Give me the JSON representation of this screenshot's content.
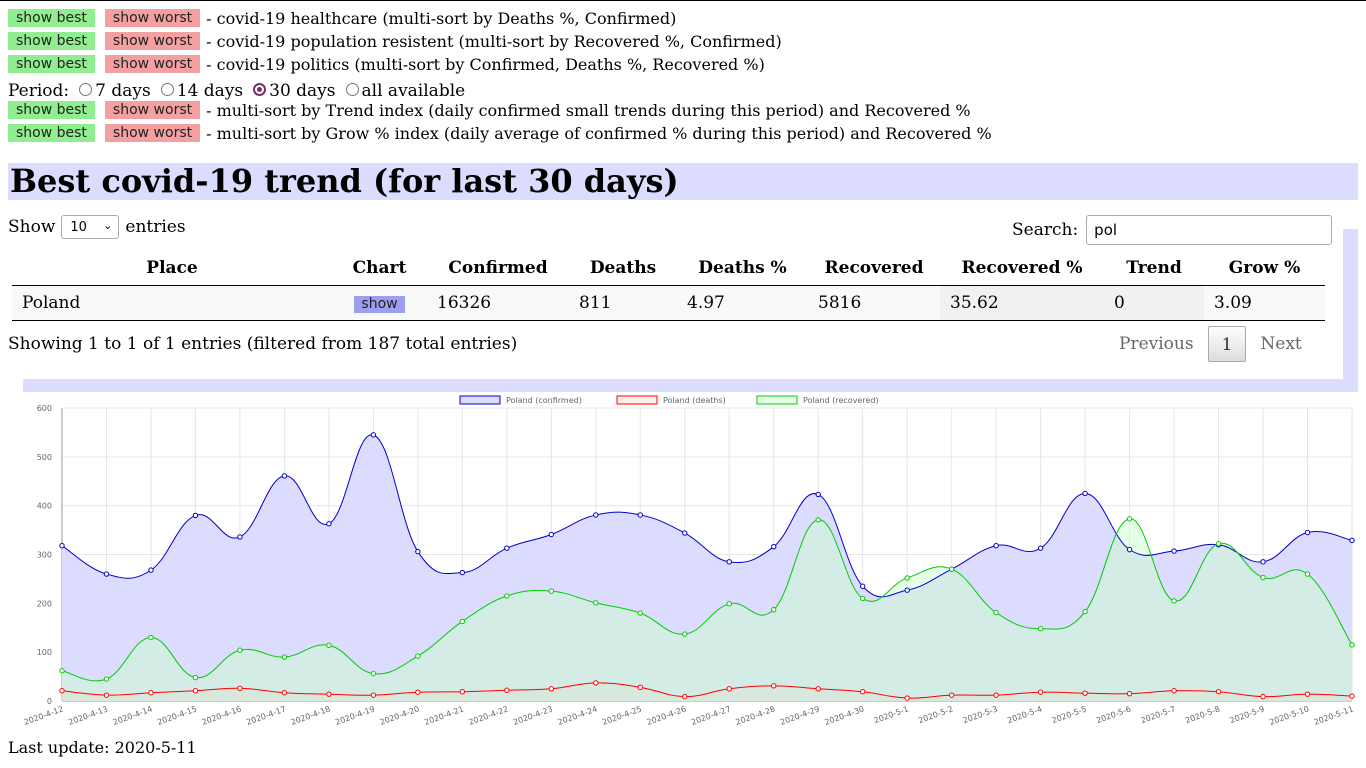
{
  "buttons": {
    "best": "show best",
    "worst": "show worst"
  },
  "sorts": [
    "- covid-19 healthcare (multi-sort by Deaths %, Confirmed)",
    "- covid-19 population resistent (multi-sort by Recovered %, Confirmed)",
    "- covid-19 politics (multi-sort by Confirmed, Deaths %, Recovered %)"
  ],
  "period": {
    "label": "Period:",
    "options": [
      "7 days",
      "14 days",
      "30 days",
      "all available"
    ],
    "selected": "30 days"
  },
  "period_sorts": [
    "- multi-sort by Trend index (daily confirmed small trends during this period) and Recovered %",
    "- multi-sort by Grow % index (daily average of confirmed % during this period) and Recovered %"
  ],
  "heading": "Best covid-19 trend (for last 30 days)",
  "length": {
    "show": "Show",
    "value": "10",
    "entries": "entries"
  },
  "search": {
    "label": "Search:",
    "value": "pol"
  },
  "table": {
    "headers": [
      "Place",
      "Chart",
      "Confirmed",
      "Deaths",
      "Deaths %",
      "Recovered",
      "Recovered %",
      "Trend",
      "Grow %"
    ],
    "rows": [
      [
        "Poland",
        "show",
        "16326",
        "811",
        "4.97",
        "5816",
        "35.62",
        "0",
        "3.09"
      ]
    ]
  },
  "info": "Showing 1 to 1 of 1 entries (filtered from 187 total entries)",
  "pager": {
    "prev": "Previous",
    "page": "1",
    "next": "Next"
  },
  "last_update": "Last update: 2020-5-11",
  "colors": {
    "confirmed": "#0000cc",
    "confirmed_fill": "#dcdcff",
    "deaths": "#ff0000",
    "recovered": "#00cc00",
    "best_btn": "#90ee90",
    "worst_btn": "#f4a0a0"
  },
  "chart_data": {
    "type": "line",
    "x": [
      "2020-4-12",
      "2020-4-13",
      "2020-4-14",
      "2020-4-15",
      "2020-4-16",
      "2020-4-17",
      "2020-4-18",
      "2020-4-19",
      "2020-4-20",
      "2020-4-21",
      "2020-4-22",
      "2020-4-23",
      "2020-4-24",
      "2020-4-25",
      "2020-4-26",
      "2020-4-27",
      "2020-4-28",
      "2020-4-29",
      "2020-4-30",
      "2020-5-1",
      "2020-5-2",
      "2020-5-3",
      "2020-5-4",
      "2020-5-5",
      "2020-5-6",
      "2020-5-7",
      "2020-5-8",
      "2020-5-9",
      "2020-5-10",
      "2020-5-11"
    ],
    "series": [
      {
        "name": "Poland (confirmed)",
        "values": [
          318,
          260,
          268,
          380,
          336,
          461,
          363,
          545,
          306,
          263,
          313,
          341,
          381,
          381,
          344,
          285,
          316,
          423,
          235,
          227,
          270,
          318,
          313,
          425,
          310,
          307,
          320,
          285,
          345,
          329
        ]
      },
      {
        "name": "Poland (deaths)",
        "values": [
          21,
          12,
          17,
          21,
          26,
          17,
          14,
          12,
          18,
          19,
          22,
          25,
          37,
          28,
          9,
          25,
          31,
          25,
          19,
          6,
          12,
          12,
          18,
          16,
          15,
          21,
          19,
          9,
          14,
          10
        ]
      },
      {
        "name": "Poland (recovered)",
        "values": [
          62,
          45,
          130,
          48,
          104,
          90,
          114,
          56,
          92,
          163,
          215,
          225,
          201,
          180,
          137,
          199,
          187,
          371,
          210,
          252,
          270,
          181,
          148,
          183,
          373,
          205,
          322,
          253,
          260,
          115
        ]
      }
    ],
    "ylim": [
      0,
      600
    ],
    "yticks": [
      0,
      100,
      200,
      300,
      400,
      500,
      600
    ],
    "legend": "top",
    "grid": true
  }
}
